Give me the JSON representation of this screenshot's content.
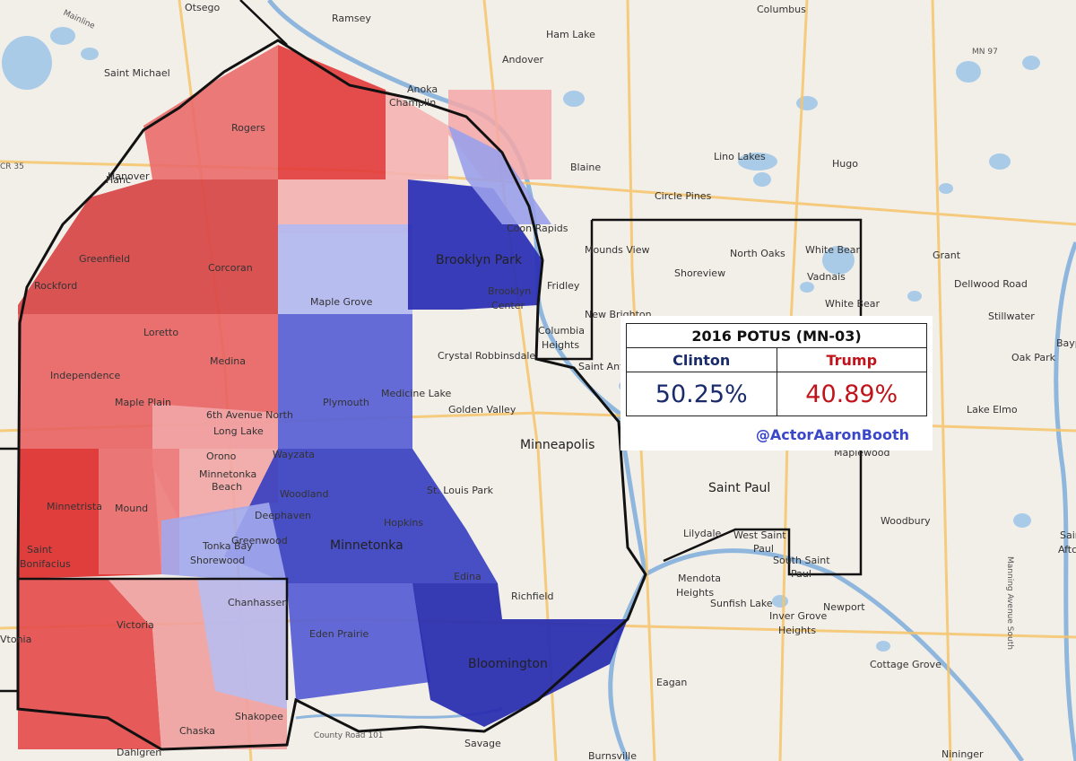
{
  "results_box": {
    "title": "2016 POTUS (MN-03)",
    "candidates": [
      {
        "name": "Clinton",
        "share": "50.25%",
        "color": "#1a2b6b"
      },
      {
        "name": "Trump",
        "share": "40.89%",
        "color": "#c0141a"
      }
    ],
    "credit": "@ActorAaronBooth",
    "credit_color": "#3b47c9"
  },
  "colors": {
    "strong_red": "#de2a2a",
    "mid_red": "#ea6c6c",
    "light_red": "#f5aaaa",
    "strong_blue": "#2b2fb0",
    "mid_blue": "#5c63d6",
    "light_blue": "#aab0ee",
    "district_border": "#111111",
    "water": "#a9cbe8",
    "highway": "#f6c46a"
  },
  "places": [
    "Otsego",
    "Ramsey",
    "Ham Lake",
    "Columbus",
    "Andover",
    "Saint Michael",
    "Anoka",
    "Champlin",
    "Rogers",
    "Blaine",
    "Lino Lakes",
    "Hugo",
    "Hanover",
    "Circle Pines",
    "Coon Rapids",
    "Greenfield",
    "Corcoran",
    "Brooklyn Park",
    "Mounds View",
    "North Oaks",
    "White Bear",
    "Grant",
    "Dellwood Road",
    "Rockford",
    "Maple Grove",
    "Brooklyn Center",
    "Fridley",
    "Shoreview",
    "Vadnais",
    "White Bear",
    "Stillwater",
    "New Brighton",
    "Loretto",
    "Medina",
    "Columbia Heights",
    "Crystal",
    "Robbinsdale",
    "Saint Anth",
    "Oak Park",
    "Bayp",
    "Independence",
    "Plymouth",
    "Medicine Lake",
    "Golden Valley",
    "Lake Elmo",
    "Maple Plain",
    "Long Lake",
    "6th Avenue North",
    "Minneapolis",
    "Maplewood",
    "Orono",
    "Wayzata",
    "Woodland",
    "St. Louis Park",
    "Saint Paul",
    "Minnetonka Beach",
    "Minnetrista",
    "Mound",
    "Deephaven",
    "Hopkins",
    "Tonka Bay",
    "Greenwood",
    "Minnetonka",
    "Shorewood",
    "Lilydale",
    "West Saint Paul",
    "South Saint Paul",
    "Woodbury",
    "Saint Bonifacius",
    "Edina",
    "Mendota Heights",
    "Sunfish Lake",
    "Richfield",
    "Newport",
    "Victoria",
    "Chanhassen",
    "Eden Prairie",
    "Inver Grove Heights",
    "Bloomington",
    "Cottage Grove",
    "Eagan",
    "Chaska",
    "Shakopee",
    "County Road 101",
    "Savage",
    "Dahlgren",
    "Burnsville",
    "Nininger",
    "Mainline",
    "MN 97",
    "CR 35",
    "Manning Avenue South",
    "Aftc",
    "Saint",
    "Hanc",
    "Vtonia"
  ]
}
